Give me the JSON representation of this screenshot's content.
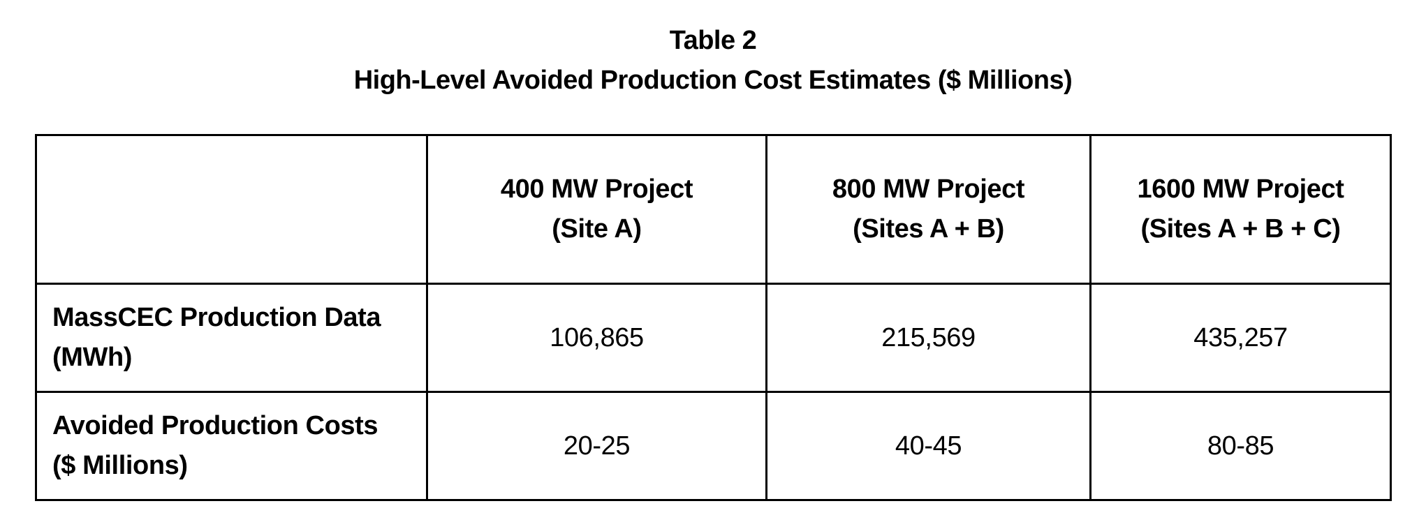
{
  "caption": {
    "label": "Table 2",
    "title": "High-Level Avoided Production Cost Estimates ($ Millions)"
  },
  "table": {
    "columns": [
      {
        "line1": "",
        "line2": ""
      },
      {
        "line1": "400 MW Project",
        "line2": "(Site A)"
      },
      {
        "line1": "800 MW Project",
        "line2": "(Sites A + B)"
      },
      {
        "line1": "1600 MW Project",
        "line2": "(Sites A + B + C)"
      }
    ],
    "rows": [
      {
        "label_line1": "MassCEC Production Data",
        "label_line2": "(MWh)",
        "values": [
          "106,865",
          "215,569",
          "435,257"
        ]
      },
      {
        "label_line1": "Avoided Production Costs",
        "label_line2": "($ Millions)",
        "values": [
          "20-25",
          "40-45",
          "80-85"
        ]
      }
    ]
  }
}
